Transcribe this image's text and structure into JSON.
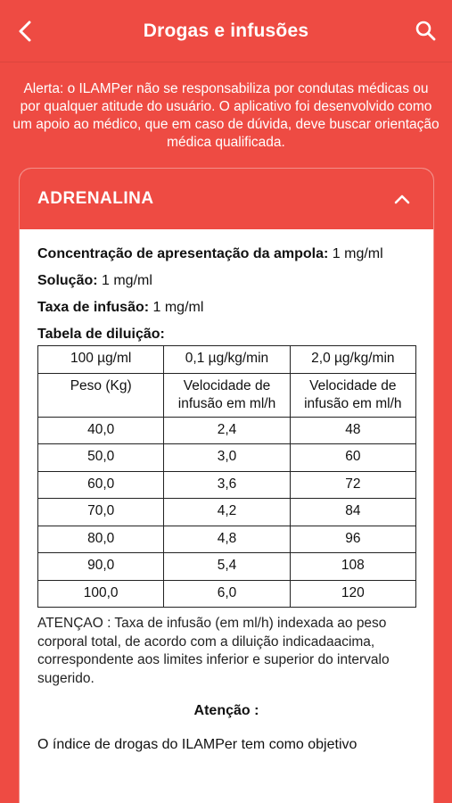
{
  "header": {
    "title": "Drogas e infusões",
    "back_icon": "chevron-left-icon",
    "search_icon": "search-icon"
  },
  "alert": "Alerta: o ILAMPer não se responsabiliza por condutas médicas ou por qualquer atitude do usuário. O aplicativo foi desenvolvido como um apoio ao médico, que em caso de dúvida, deve buscar orientação médica qualificada.",
  "card": {
    "drug_name": "ADRENALINA",
    "expand_icon": "chevron-up-icon",
    "concentration_label": "Concentração de apresentação da ampola:",
    "concentration_value": " 1 mg/ml",
    "solution_label": "Solução:",
    "solution_value": " 1 mg/ml",
    "rate_label": "Taxa de infusão:",
    "rate_value": " 1 mg/ml",
    "table_title": "Tabela de diluição:",
    "table": {
      "head1": [
        "100 µg/ml",
        "0,1 µg/kg/min",
        "2,0 µg/kg/min"
      ],
      "head2": [
        "Peso (Kg)",
        "Velocidade de infusão em ml/h",
        "Velocidade de infusão em ml/h"
      ],
      "rows": [
        [
          "40,0",
          "2,4",
          "48"
        ],
        [
          "50,0",
          "3,0",
          "60"
        ],
        [
          "60,0",
          "3,6",
          "72"
        ],
        [
          "70,0",
          "4,2",
          "84"
        ],
        [
          "80,0",
          "4,8",
          "96"
        ],
        [
          "90,0",
          "5,4",
          "108"
        ],
        [
          "100,0",
          "6,0",
          "120"
        ]
      ]
    },
    "note": "ATENÇAO : Taxa de infusão (em ml/h) indexada ao peso corporal total, de acordo com a diluição indicadaacima, correspondente aos limites inferior e superior do intervalo sugerido.",
    "attention_title": "Atenção :",
    "footer_text": "O índice de drogas do ILAMPer tem como objetivo"
  },
  "colors": {
    "primary": "#ee4b43",
    "card_bg": "#ffffff"
  }
}
